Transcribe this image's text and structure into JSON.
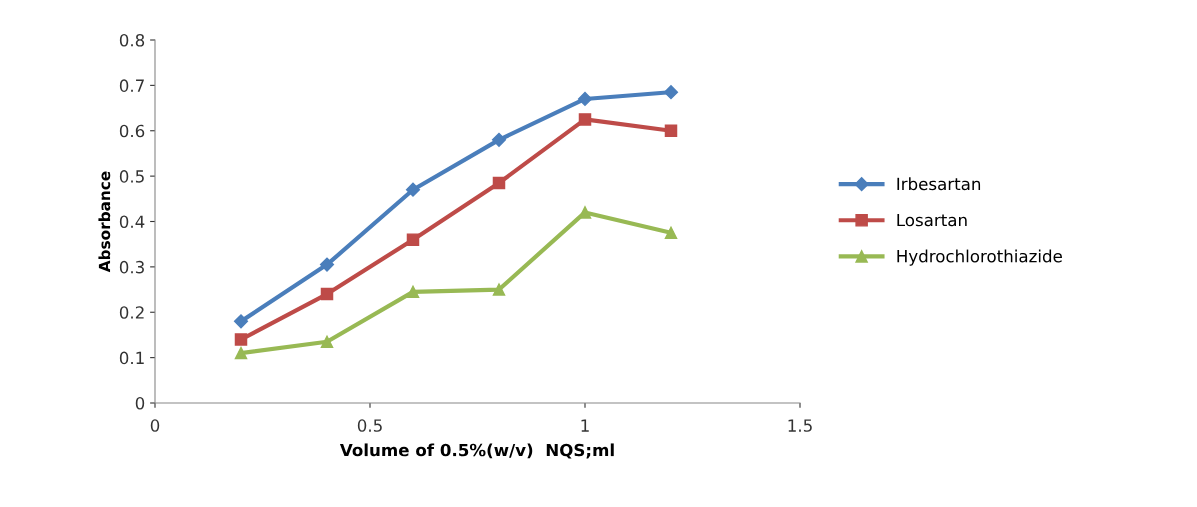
{
  "chart_data": {
    "type": "line",
    "xlabel": "Volume of 0.5%(w/v)  NQS;ml",
    "ylabel": "Absorbance",
    "x": [
      0.2,
      0.4,
      0.6,
      0.8,
      1.0,
      1.2
    ],
    "xlim": [
      0,
      1.5
    ],
    "xticks": [
      0,
      0.5,
      1,
      1.5
    ],
    "ylim": [
      0,
      0.8
    ],
    "yticks": [
      0,
      0.1,
      0.2,
      0.3,
      0.4,
      0.5,
      0.6,
      0.7,
      0.8
    ],
    "grid": false,
    "legend": "right",
    "line_style": "solid",
    "series": [
      {
        "name": "Irbesartan",
        "color": "#4a7ebb",
        "marker": "diamond",
        "values": [
          0.18,
          0.305,
          0.47,
          0.58,
          0.67,
          0.685
        ]
      },
      {
        "name": "Losartan",
        "color": "#be4b48",
        "marker": "square",
        "values": [
          0.14,
          0.24,
          0.36,
          0.485,
          0.625,
          0.6
        ]
      },
      {
        "name": "Hydrochlorothiazide",
        "color": "#98b954",
        "marker": "triangle",
        "values": [
          0.11,
          0.135,
          0.245,
          0.25,
          0.42,
          0.375
        ]
      }
    ]
  }
}
